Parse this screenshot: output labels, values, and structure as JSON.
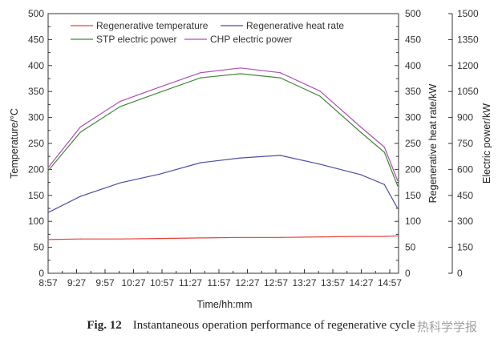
{
  "chart_data": {
    "type": "line",
    "xlabel": "Time/hh:mm",
    "ylabel_left": "Temperature/°C",
    "ylabel_right1": "Regenerative heat rate/kW",
    "ylabel_right2": "Electric power/kW",
    "x_tick_labels": [
      "8:57",
      "9:27",
      "9:57",
      "10:27",
      "10:57",
      "11:27",
      "11:57",
      "12:27",
      "12:57",
      "13:27",
      "13:57",
      "14:27",
      "14:57"
    ],
    "y_left_ticks": [
      0,
      50,
      100,
      150,
      200,
      250,
      300,
      350,
      400,
      450,
      500
    ],
    "y_right1_ticks": [
      0,
      50,
      100,
      150,
      200,
      250,
      300,
      350,
      400,
      450,
      500
    ],
    "y_right2_ticks": [
      0,
      150,
      300,
      450,
      600,
      750,
      900,
      1050,
      1200,
      1350,
      1500
    ],
    "ylim_left": [
      0,
      500
    ],
    "ylim_right1": [
      0,
      500
    ],
    "ylim_right2": [
      0,
      1500
    ],
    "x_minutes_range": [
      0,
      370
    ],
    "x_minutes": [
      0,
      34,
      76,
      118,
      161,
      203,
      245,
      287,
      330,
      355,
      369
    ],
    "legend_position": "top",
    "series": [
      {
        "name": "Regenerative temperature",
        "axis": "left",
        "color": "#e8403a",
        "values": [
          65,
          66,
          66,
          67,
          68,
          69,
          69,
          70,
          71,
          71,
          72
        ]
      },
      {
        "name": "Regenerative heat rate",
        "axis": "right1",
        "color": "#4a4ea8",
        "values": [
          117,
          148,
          174,
          191,
          213,
          222,
          227,
          210,
          190,
          171,
          125
        ]
      },
      {
        "name": "STP electric power",
        "axis": "right2",
        "color": "#3f8a35",
        "values": [
          592,
          815,
          963,
          1046,
          1129,
          1153,
          1129,
          1023,
          815,
          699,
          505
        ]
      },
      {
        "name": "CHP electric power",
        "axis": "right2",
        "color": "#b24cb8",
        "values": [
          610,
          845,
          993,
          1076,
          1159,
          1186,
          1159,
          1053,
          845,
          729,
          535
        ]
      }
    ]
  },
  "caption": {
    "label": "Fig. 12",
    "text": "Instantaneous operation performance of regenerative cycle"
  },
  "watermark": "热科学学报"
}
